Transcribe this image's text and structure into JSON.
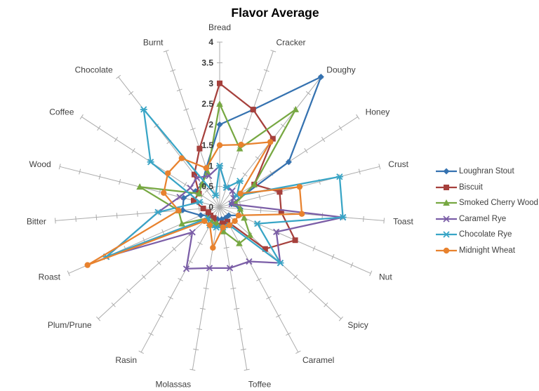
{
  "title": "Flavor Average",
  "chart_data": {
    "type": "radar",
    "title": "Flavor Average",
    "legend_position": "right",
    "grid": "radial-spokes-with-ticks",
    "rmin": 0,
    "rmax": 4,
    "tick_step": 0.5,
    "axis_tick_labels": [
      "0",
      "0.5",
      "1",
      "1.5",
      "2",
      "2.5",
      "3",
      "3.5",
      "4"
    ],
    "categories": [
      "Bread",
      "Cracker",
      "Doughy",
      "Honey",
      "Crust",
      "Toast",
      "Nut",
      "Spicy",
      "Caramel",
      "Toffee",
      "Molassas",
      "Rasin",
      "Plum/Prune",
      "Roast",
      "Bitter",
      "Wood",
      "Coffee",
      "Chocolate",
      "Burnt"
    ],
    "series": [
      {
        "name": "Loughran Stout",
        "color": "#3572B0",
        "marker": "diamond",
        "values": [
          2,
          2.5,
          4,
          2,
          0.3,
          0.5,
          0.5,
          0.3,
          0.3,
          0.3,
          0.3,
          0.3,
          0.3,
          0.5,
          0.9,
          0.9,
          0.7,
          0.7,
          1
        ]
      },
      {
        "name": "Biscuit",
        "color": "#A6403C",
        "marker": "square",
        "values": [
          3,
          2.5,
          2.1,
          1,
          1.5,
          1.5,
          2,
          1.5,
          0.4,
          0.4,
          0.45,
          0.3,
          0.3,
          0.3,
          0.4,
          0.65,
          0.6,
          1,
          1.5
        ]
      },
      {
        "name": "Smoked Cherry Wood",
        "color": "#77A842",
        "marker": "triangle",
        "values": [
          2.5,
          1.5,
          3,
          1,
          0.4,
          0.5,
          0.65,
          1,
          1,
          0.6,
          0.4,
          0.4,
          0.4,
          1,
          1,
          2,
          0.6,
          0.7,
          0.9
        ]
      },
      {
        "name": "Caramel Rye",
        "color": "#7B5EA7",
        "marker": "x",
        "values": [
          1,
          0.5,
          0.5,
          0.4,
          0.3,
          3,
          1.5,
          2,
          1.5,
          1.5,
          1.5,
          1.7,
          0.9,
          3,
          1.5,
          1,
          0.85,
          0.9,
          0.8
        ]
      },
      {
        "name": "Chocolate Rye",
        "color": "#38A5C6",
        "marker": "asterisk",
        "values": [
          1,
          0.5,
          0.8,
          0.5,
          3,
          3,
          1,
          2,
          0.5,
          0.5,
          0.5,
          0.5,
          0.4,
          3,
          1.5,
          0.5,
          2,
          3,
          0.3
        ]
      },
      {
        "name": "Midnight Wheat",
        "color": "#E8822E",
        "marker": "circle",
        "values": [
          1.5,
          1.6,
          2,
          0.6,
          2,
          2,
          0.5,
          0.5,
          0.5,
          0.5,
          1,
          0.5,
          0.5,
          3.5,
          1,
          1.4,
          1.5,
          1.5,
          1
        ]
      }
    ]
  }
}
